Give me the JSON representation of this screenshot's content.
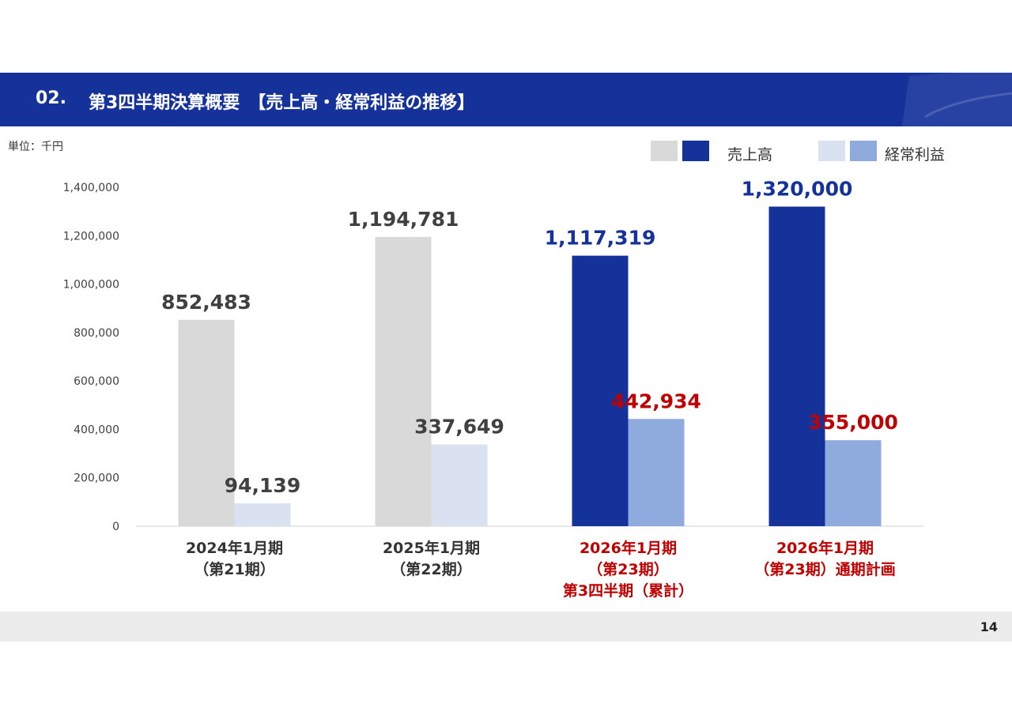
{
  "header": {
    "section_number": "02.",
    "title": "第3四半期決算概要　【売上高・経常利益の推移】",
    "background_color": "#15329a"
  },
  "unit_label": "単位：千円",
  "legend": {
    "sales_label": "売上高",
    "profit_label": "経常利益"
  },
  "page_number": "14",
  "chart_data": {
    "type": "bar",
    "title": "",
    "xlabel": "",
    "ylabel": "",
    "ylim": [
      0,
      1400000
    ],
    "yticks": [
      0,
      200000,
      400000,
      600000,
      800000,
      1000000,
      1200000,
      1400000
    ],
    "ytick_labels": [
      "0",
      "200,000",
      "400,000",
      "600,000",
      "800,000",
      "1,000,000",
      "1,200,000",
      "1,400,000"
    ],
    "grid": false,
    "legend_position": "top-right",
    "categories": [
      [
        "2024年1月期",
        "（第21期）"
      ],
      [
        "2025年1月期",
        "（第22期）"
      ],
      [
        "2026年1月期",
        "（第23期）",
        "第3四半期（累計）"
      ],
      [
        "2026年1月期",
        "（第23期）通期計画"
      ]
    ],
    "category_label_colors": [
      "#333333",
      "#333333",
      "#c00000",
      "#c00000"
    ],
    "series": [
      {
        "name": "売上高",
        "values": [
          852483,
          1194781,
          1117319,
          1320000
        ],
        "labels": [
          "852,483",
          "1,194,781",
          "1,117,319",
          "1,320,000"
        ],
        "colors": [
          "#d9d9d9",
          "#d9d9d9",
          "#15329a",
          "#15329a"
        ],
        "label_colors": [
          "#404040",
          "#404040",
          "#15329a",
          "#15329a"
        ]
      },
      {
        "name": "経常利益",
        "values": [
          94139,
          337649,
          442934,
          355000
        ],
        "labels": [
          "94,139",
          "337,649",
          "442,934",
          "355,000"
        ],
        "colors": [
          "#dae1f1",
          "#dae1f1",
          "#8faadc",
          "#8faadc"
        ],
        "label_colors": [
          "#404040",
          "#404040",
          "#c00000",
          "#c00000"
        ]
      }
    ]
  }
}
